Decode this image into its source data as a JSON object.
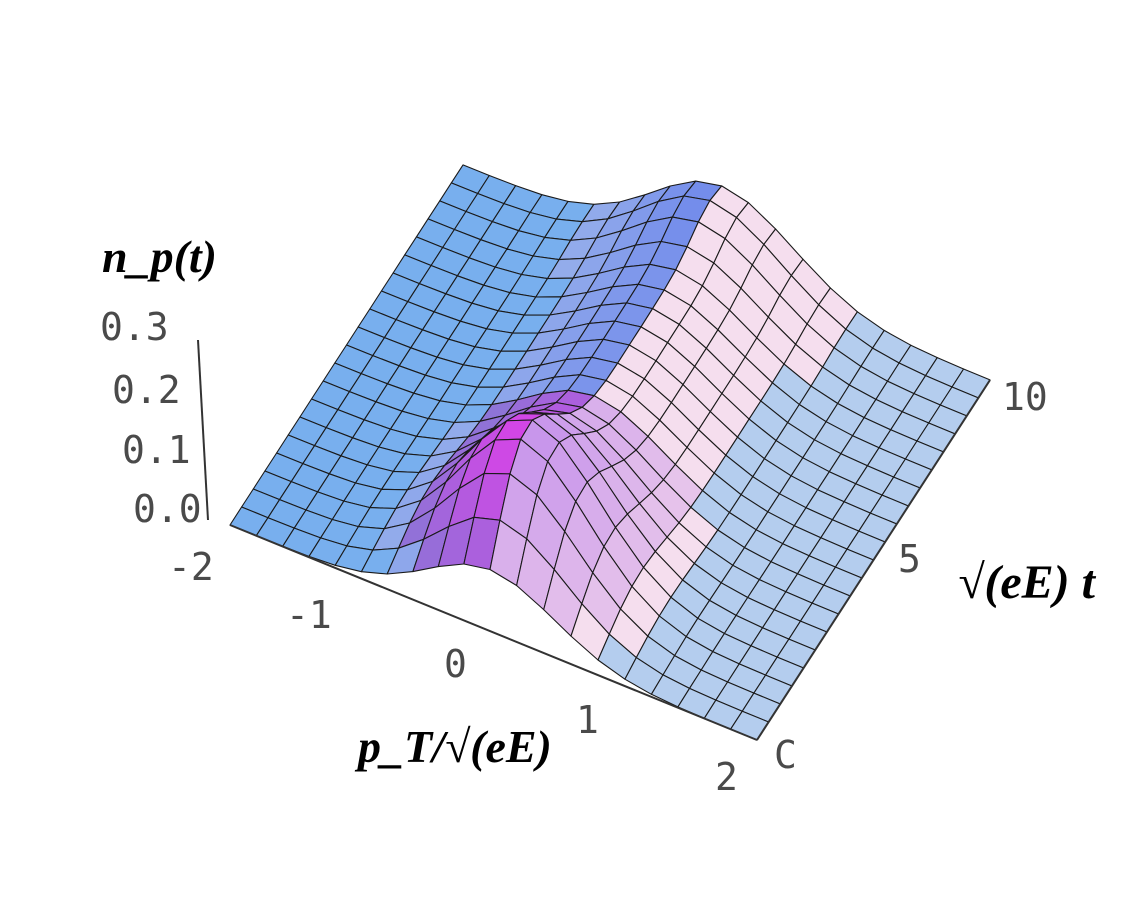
{
  "chart_data": {
    "type": "surface3d",
    "title": "",
    "xlabel": "p_T/√(eE)",
    "ylabel": "√(eE) t",
    "zlabel": "n_p(t)",
    "x_ticks": [
      "-2",
      "-1",
      "0",
      "1",
      "2"
    ],
    "y_ticks": [
      "C",
      "5",
      "10"
    ],
    "z_ticks": [
      "0.0",
      "0.1",
      "0.2",
      "0.3"
    ],
    "xlim": [
      -2,
      2
    ],
    "ylim": [
      0,
      10
    ],
    "zlim": [
      0,
      0.3
    ],
    "x_grid": [
      -2.0,
      -1.8,
      -1.6,
      -1.4,
      -1.2,
      -1.0,
      -0.8,
      -0.6,
      -0.4,
      -0.2,
      0.0,
      0.2,
      0.4,
      0.6,
      0.8,
      1.0,
      1.2,
      1.4,
      1.6,
      1.8,
      2.0
    ],
    "y_grid": [
      0,
      0.5,
      1,
      1.5,
      2,
      2.5,
      3,
      3.5,
      4,
      4.5,
      5,
      5.5,
      6,
      6.5,
      7,
      7.5,
      8,
      8.5,
      9,
      9.5,
      10
    ],
    "peak": {
      "x": 0.0,
      "y": 1.5,
      "z": 0.22
    },
    "ridge_height": 0.12,
    "grid": true
  }
}
